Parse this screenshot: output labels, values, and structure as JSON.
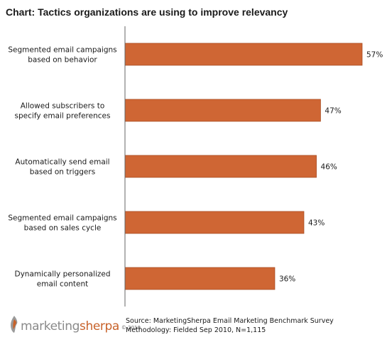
{
  "chart_data": {
    "type": "bar",
    "orientation": "horizontal",
    "title": "Chart: Tactics organizations are using to improve relevancy",
    "categories": [
      [
        "Segmented email campaigns",
        "based on behavior"
      ],
      [
        "Allowed subscribers to",
        "specify email preferences"
      ],
      [
        "Automatically send email",
        "based on triggers"
      ],
      [
        "Segmented email campaigns",
        "based on sales cycle"
      ],
      [
        "Dynamically personalized",
        "email content"
      ]
    ],
    "values": [
      57,
      47,
      46,
      43,
      36
    ],
    "value_labels": [
      "57%",
      "47%",
      "46%",
      "43%",
      "36%"
    ],
    "bar_color": "#cf6634",
    "bar_edge_color": "#a84c22",
    "xlim": [
      0,
      57
    ],
    "grid": false,
    "legend": "none"
  },
  "branding": {
    "logo_word_1": "marketing",
    "logo_word_2": "sherpa",
    "logo_year": "© 2010"
  },
  "footer": {
    "source_line": "Source: MarketingSherpa Email Marketing Benchmark Survey",
    "methodology_line": "Methodology: Fielded Sep 2010, N=1,115"
  }
}
